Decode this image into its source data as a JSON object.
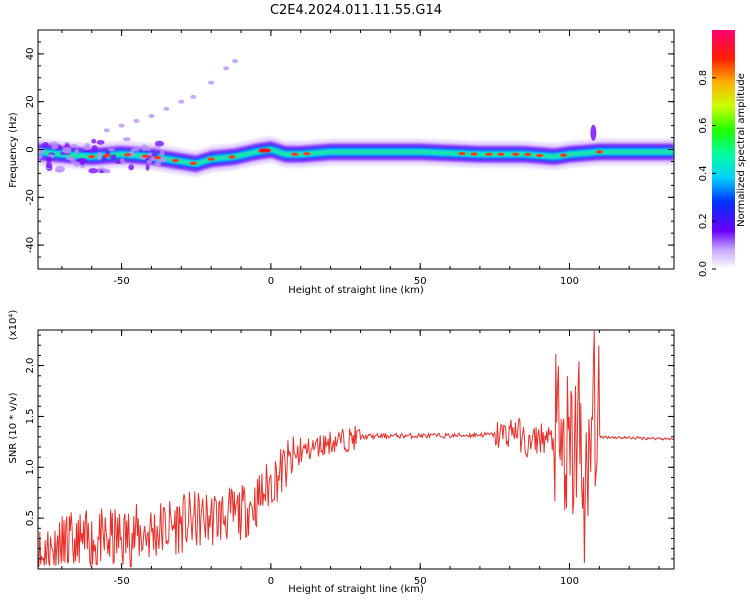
{
  "title": "C2E4.2024.011.11.55.G14",
  "colors": {
    "snr_line": "#e8302a",
    "background": "#ffffff",
    "axis": "#000000"
  },
  "chart_data": [
    {
      "type": "heatmap",
      "xlabel": "Height of straight line (km)",
      "ylabel": "Frequency (Hz)",
      "xlim": [
        -78,
        135
      ],
      "ylim": [
        -50,
        50
      ],
      "xticks": [
        "-50",
        "0",
        "50",
        "100"
      ],
      "yticks": [
        "-40",
        "-20",
        "0",
        "20",
        "40"
      ],
      "colorbar": {
        "label": "Normalized spectral amplitude",
        "range": [
          0,
          1
        ],
        "ticks": [
          "0.0",
          "0.2",
          "0.4",
          "0.6",
          "0.8"
        ]
      },
      "ridge": {
        "x": [
          -78,
          -70,
          -60,
          -50,
          -40,
          -30,
          -25,
          -20,
          -12,
          -5,
          0,
          5,
          10,
          20,
          30,
          50,
          70,
          85,
          95,
          100,
          110,
          135
        ],
        "freq": [
          -1,
          -2,
          -3,
          -2,
          -3,
          -5,
          -6,
          -4,
          -3,
          -1,
          0,
          -2,
          -2,
          -1,
          -1,
          -1,
          -2,
          -2,
          -3,
          -2,
          -1,
          -1
        ]
      }
    },
    {
      "type": "line",
      "xlabel": "Height of straight line (km)",
      "ylabel": "SNR (10 * v/v)",
      "y_multiplier": "(x10⁴)",
      "xlim": [
        -78,
        135
      ],
      "ylim": [
        0,
        23500
      ],
      "xticks": [
        "-50",
        "0",
        "50",
        "100"
      ],
      "yticks": [
        "0.5",
        "1.0",
        "1.5",
        "2.0"
      ],
      "series": [
        {
          "x": [
            -78,
            -70,
            -60,
            -50,
            -40,
            -30,
            -20,
            -10,
            -5,
            0,
            5,
            8,
            10,
            15,
            20,
            25,
            30,
            40,
            50,
            60,
            70,
            78,
            82,
            86,
            90,
            95,
            100,
            103,
            106,
            108,
            110,
            120,
            135
          ],
          "y": [
            1000,
            2000,
            2500,
            3000,
            3600,
            4500,
            5000,
            5500,
            6500,
            8500,
            10000,
            10800,
            11500,
            12000,
            12500,
            12700,
            13000,
            13100,
            13100,
            13100,
            13200,
            13200,
            13800,
            12000,
            13000,
            12500,
            10000,
            14000,
            5000,
            18000,
            13000,
            12900,
            12800
          ]
        }
      ]
    }
  ]
}
